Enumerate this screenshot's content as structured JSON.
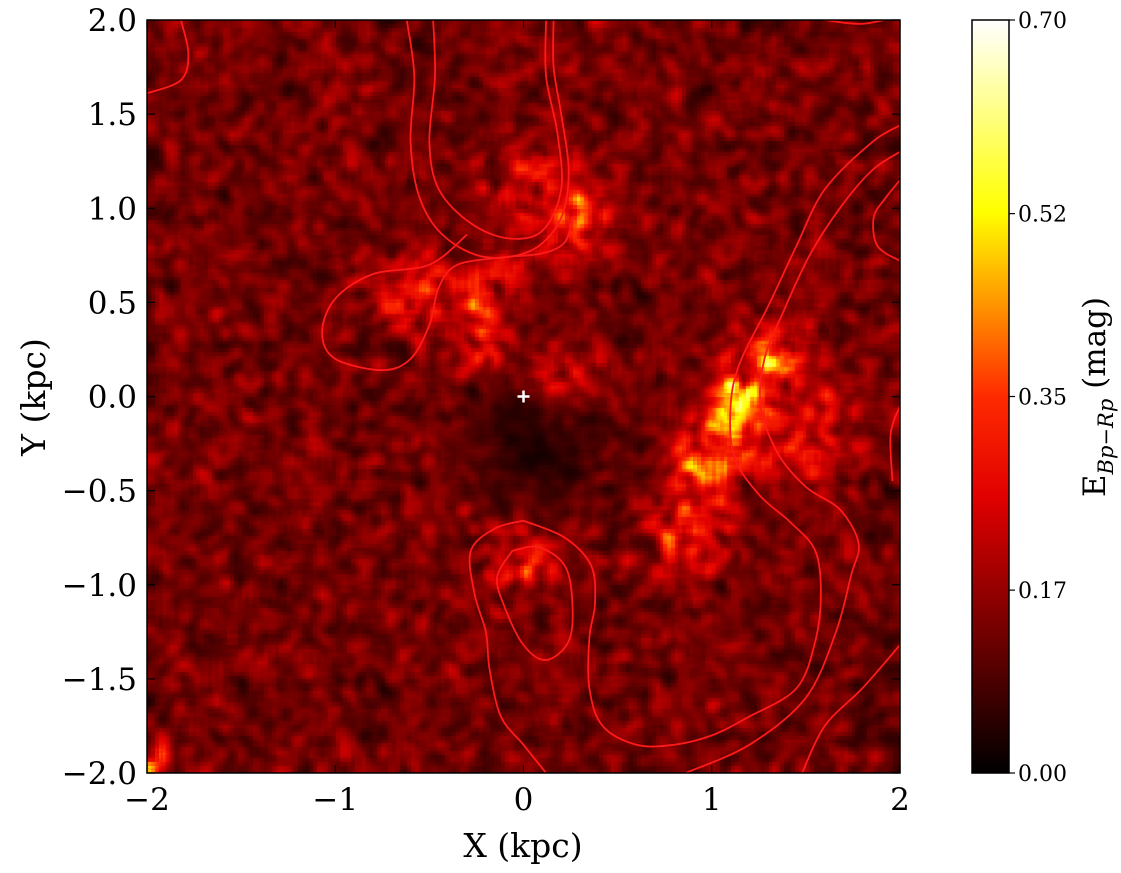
{
  "chart_data": {
    "type": "heatmap",
    "xlabel": "X (kpc)",
    "ylabel": "Y (kpc)",
    "xlim": [
      -2,
      2
    ],
    "ylim": [
      -2,
      2
    ],
    "x_ticks": [
      -2,
      -1,
      0,
      1,
      2
    ],
    "y_ticks": [
      -2.0,
      -1.5,
      -1.0,
      -0.5,
      0.0,
      0.5,
      1.0,
      1.5,
      2.0
    ],
    "x_tick_labels": [
      "−2",
      "−1",
      "0",
      "1",
      "2"
    ],
    "y_tick_labels": [
      "−2.0",
      "−1.5",
      "−1.0",
      "−0.5",
      "0.0",
      "0.5",
      "1.0",
      "1.5",
      "2.0"
    ],
    "colorbar": {
      "label_main": "E",
      "label_sub": "Bp−Rp",
      "label_unit": "(mag)",
      "range": [
        0.0,
        0.7
      ],
      "ticks": [
        0.0,
        0.17,
        0.35,
        0.52,
        0.7
      ],
      "tick_labels": [
        "0.00",
        "0.17",
        "0.35",
        "0.52",
        "0.70"
      ],
      "colormap": "hot"
    },
    "center_marker": {
      "x": 0.0,
      "y": 0.0,
      "symbol": "+",
      "color": "#ffffff"
    },
    "contour_color": "#ff1a1a",
    "contours": [
      {
        "points": [
          [
            -2.0,
            1.61
          ],
          [
            -1.82,
            1.68
          ],
          [
            -1.78,
            1.82
          ],
          [
            -1.82,
            2.0
          ]
        ]
      },
      {
        "points": [
          [
            -0.62,
            2.0
          ],
          [
            -0.58,
            1.7
          ],
          [
            -0.6,
            1.35
          ],
          [
            -0.55,
            1.05
          ],
          [
            -0.42,
            0.85
          ],
          [
            -0.2,
            0.74
          ],
          [
            0.05,
            0.78
          ],
          [
            0.2,
            0.95
          ],
          [
            0.24,
            1.2
          ],
          [
            0.2,
            1.5
          ],
          [
            0.16,
            1.75
          ],
          [
            0.16,
            2.0
          ]
        ]
      },
      {
        "points": [
          [
            -0.48,
            2.0
          ],
          [
            -0.47,
            1.7
          ],
          [
            -0.5,
            1.35
          ],
          [
            -0.45,
            1.1
          ],
          [
            -0.28,
            0.92
          ],
          [
            -0.08,
            0.84
          ],
          [
            0.1,
            0.88
          ],
          [
            0.2,
            1.1
          ],
          [
            0.18,
            1.4
          ],
          [
            0.12,
            1.7
          ],
          [
            0.12,
            2.0
          ]
        ]
      },
      {
        "points": [
          [
            -0.3,
            0.86
          ],
          [
            -0.5,
            0.7
          ],
          [
            -0.8,
            0.65
          ],
          [
            -1.0,
            0.52
          ],
          [
            -1.07,
            0.34
          ],
          [
            -1.0,
            0.2
          ],
          [
            -0.75,
            0.14
          ],
          [
            -0.6,
            0.2
          ],
          [
            -0.5,
            0.38
          ],
          [
            -0.45,
            0.58
          ],
          [
            -0.35,
            0.7
          ],
          [
            -0.1,
            0.74
          ],
          [
            0.1,
            0.76
          ],
          [
            0.22,
            0.82
          ],
          [
            0.26,
            0.95
          ]
        ]
      },
      {
        "points": [
          [
            0.0,
            -0.66
          ],
          [
            -0.15,
            -0.7
          ],
          [
            -0.28,
            -0.82
          ],
          [
            -0.26,
            -1.05
          ],
          [
            -0.2,
            -1.25
          ],
          [
            -0.18,
            -1.45
          ],
          [
            -0.12,
            -1.7
          ],
          [
            0.0,
            -1.85
          ],
          [
            0.12,
            -2.0
          ]
        ]
      },
      {
        "points": [
          [
            0.0,
            -0.66
          ],
          [
            0.22,
            -0.75
          ],
          [
            0.36,
            -0.9
          ],
          [
            0.38,
            -1.1
          ],
          [
            0.35,
            -1.28
          ],
          [
            0.35,
            -1.55
          ],
          [
            0.42,
            -1.75
          ],
          [
            0.6,
            -1.85
          ],
          [
            0.8,
            -1.85
          ],
          [
            1.0,
            -1.8
          ],
          [
            1.2,
            -1.7
          ],
          [
            1.45,
            -1.55
          ],
          [
            1.55,
            -1.3
          ],
          [
            1.58,
            -1.05
          ],
          [
            1.55,
            -0.82
          ],
          [
            1.42,
            -0.67
          ],
          [
            1.25,
            -0.52
          ],
          [
            1.12,
            -0.32
          ],
          [
            1.1,
            -0.05
          ],
          [
            1.15,
            0.18
          ],
          [
            1.3,
            0.48
          ],
          [
            1.45,
            0.8
          ],
          [
            1.6,
            1.1
          ],
          [
            1.85,
            1.35
          ],
          [
            2.0,
            1.44
          ]
        ]
      },
      {
        "points": [
          [
            -0.06,
            -0.82
          ],
          [
            0.08,
            -0.8
          ],
          [
            0.22,
            -0.9
          ],
          [
            0.26,
            -1.1
          ],
          [
            0.24,
            -1.3
          ],
          [
            0.12,
            -1.4
          ],
          [
            0.0,
            -1.32
          ],
          [
            -0.1,
            -1.12
          ],
          [
            -0.14,
            -0.96
          ],
          [
            -0.06,
            -0.82
          ]
        ]
      },
      {
        "points": [
          [
            0.86,
            -2.0
          ],
          [
            1.2,
            -1.85
          ],
          [
            1.5,
            -1.6
          ],
          [
            1.66,
            -1.25
          ],
          [
            1.74,
            -0.95
          ],
          [
            1.78,
            -0.78
          ],
          [
            1.68,
            -0.6
          ],
          [
            1.5,
            -0.48
          ],
          [
            1.35,
            -0.3
          ],
          [
            1.26,
            -0.05
          ],
          [
            1.28,
            0.2
          ],
          [
            1.38,
            0.45
          ],
          [
            1.52,
            0.75
          ],
          [
            1.68,
            1.0
          ],
          [
            1.85,
            1.2
          ],
          [
            2.0,
            1.3
          ]
        ]
      },
      {
        "points": [
          [
            1.48,
            -2.0
          ],
          [
            1.6,
            -1.75
          ],
          [
            1.8,
            -1.55
          ],
          [
            2.0,
            -1.32
          ]
        ]
      },
      {
        "points": [
          [
            2.0,
            -0.05
          ],
          [
            1.95,
            -0.2
          ],
          [
            1.96,
            -0.45
          ]
        ]
      },
      {
        "points": [
          [
            2.0,
            0.72
          ],
          [
            1.88,
            0.8
          ],
          [
            1.86,
            0.95
          ],
          [
            1.92,
            1.05
          ],
          [
            2.0,
            1.15
          ]
        ]
      },
      {
        "points": [
          [
            1.6,
            2.0
          ],
          [
            1.8,
            1.98
          ],
          [
            2.0,
            2.02
          ]
        ]
      }
    ],
    "hotspots": [
      {
        "x": 1.12,
        "y": -0.05,
        "sigma": 0.1,
        "amp": 0.5
      },
      {
        "x": 1.0,
        "y": -0.3,
        "sigma": 0.12,
        "amp": 0.4
      },
      {
        "x": 1.3,
        "y": 0.2,
        "sigma": 0.14,
        "amp": 0.32
      },
      {
        "x": -0.65,
        "y": 0.55,
        "sigma": 0.14,
        "amp": 0.3
      },
      {
        "x": -0.2,
        "y": 0.55,
        "sigma": 0.12,
        "amp": 0.26
      },
      {
        "x": -0.2,
        "y": 0.25,
        "sigma": 0.1,
        "amp": 0.22
      },
      {
        "x": 0.2,
        "y": 0.08,
        "sigma": 0.1,
        "amp": 0.25
      },
      {
        "x": 0.1,
        "y": 1.1,
        "sigma": 0.18,
        "amp": 0.2
      },
      {
        "x": 0.3,
        "y": 0.9,
        "sigma": 0.12,
        "amp": 0.22
      },
      {
        "x": 0.0,
        "y": -0.85,
        "sigma": 0.12,
        "amp": 0.24
      },
      {
        "x": 0.85,
        "y": -0.7,
        "sigma": 0.18,
        "amp": 0.22
      },
      {
        "x": -1.98,
        "y": -1.93,
        "sigma": 0.06,
        "amp": 0.4
      },
      {
        "x": 1.5,
        "y": -0.2,
        "sigma": 0.2,
        "amp": 0.18
      }
    ]
  }
}
